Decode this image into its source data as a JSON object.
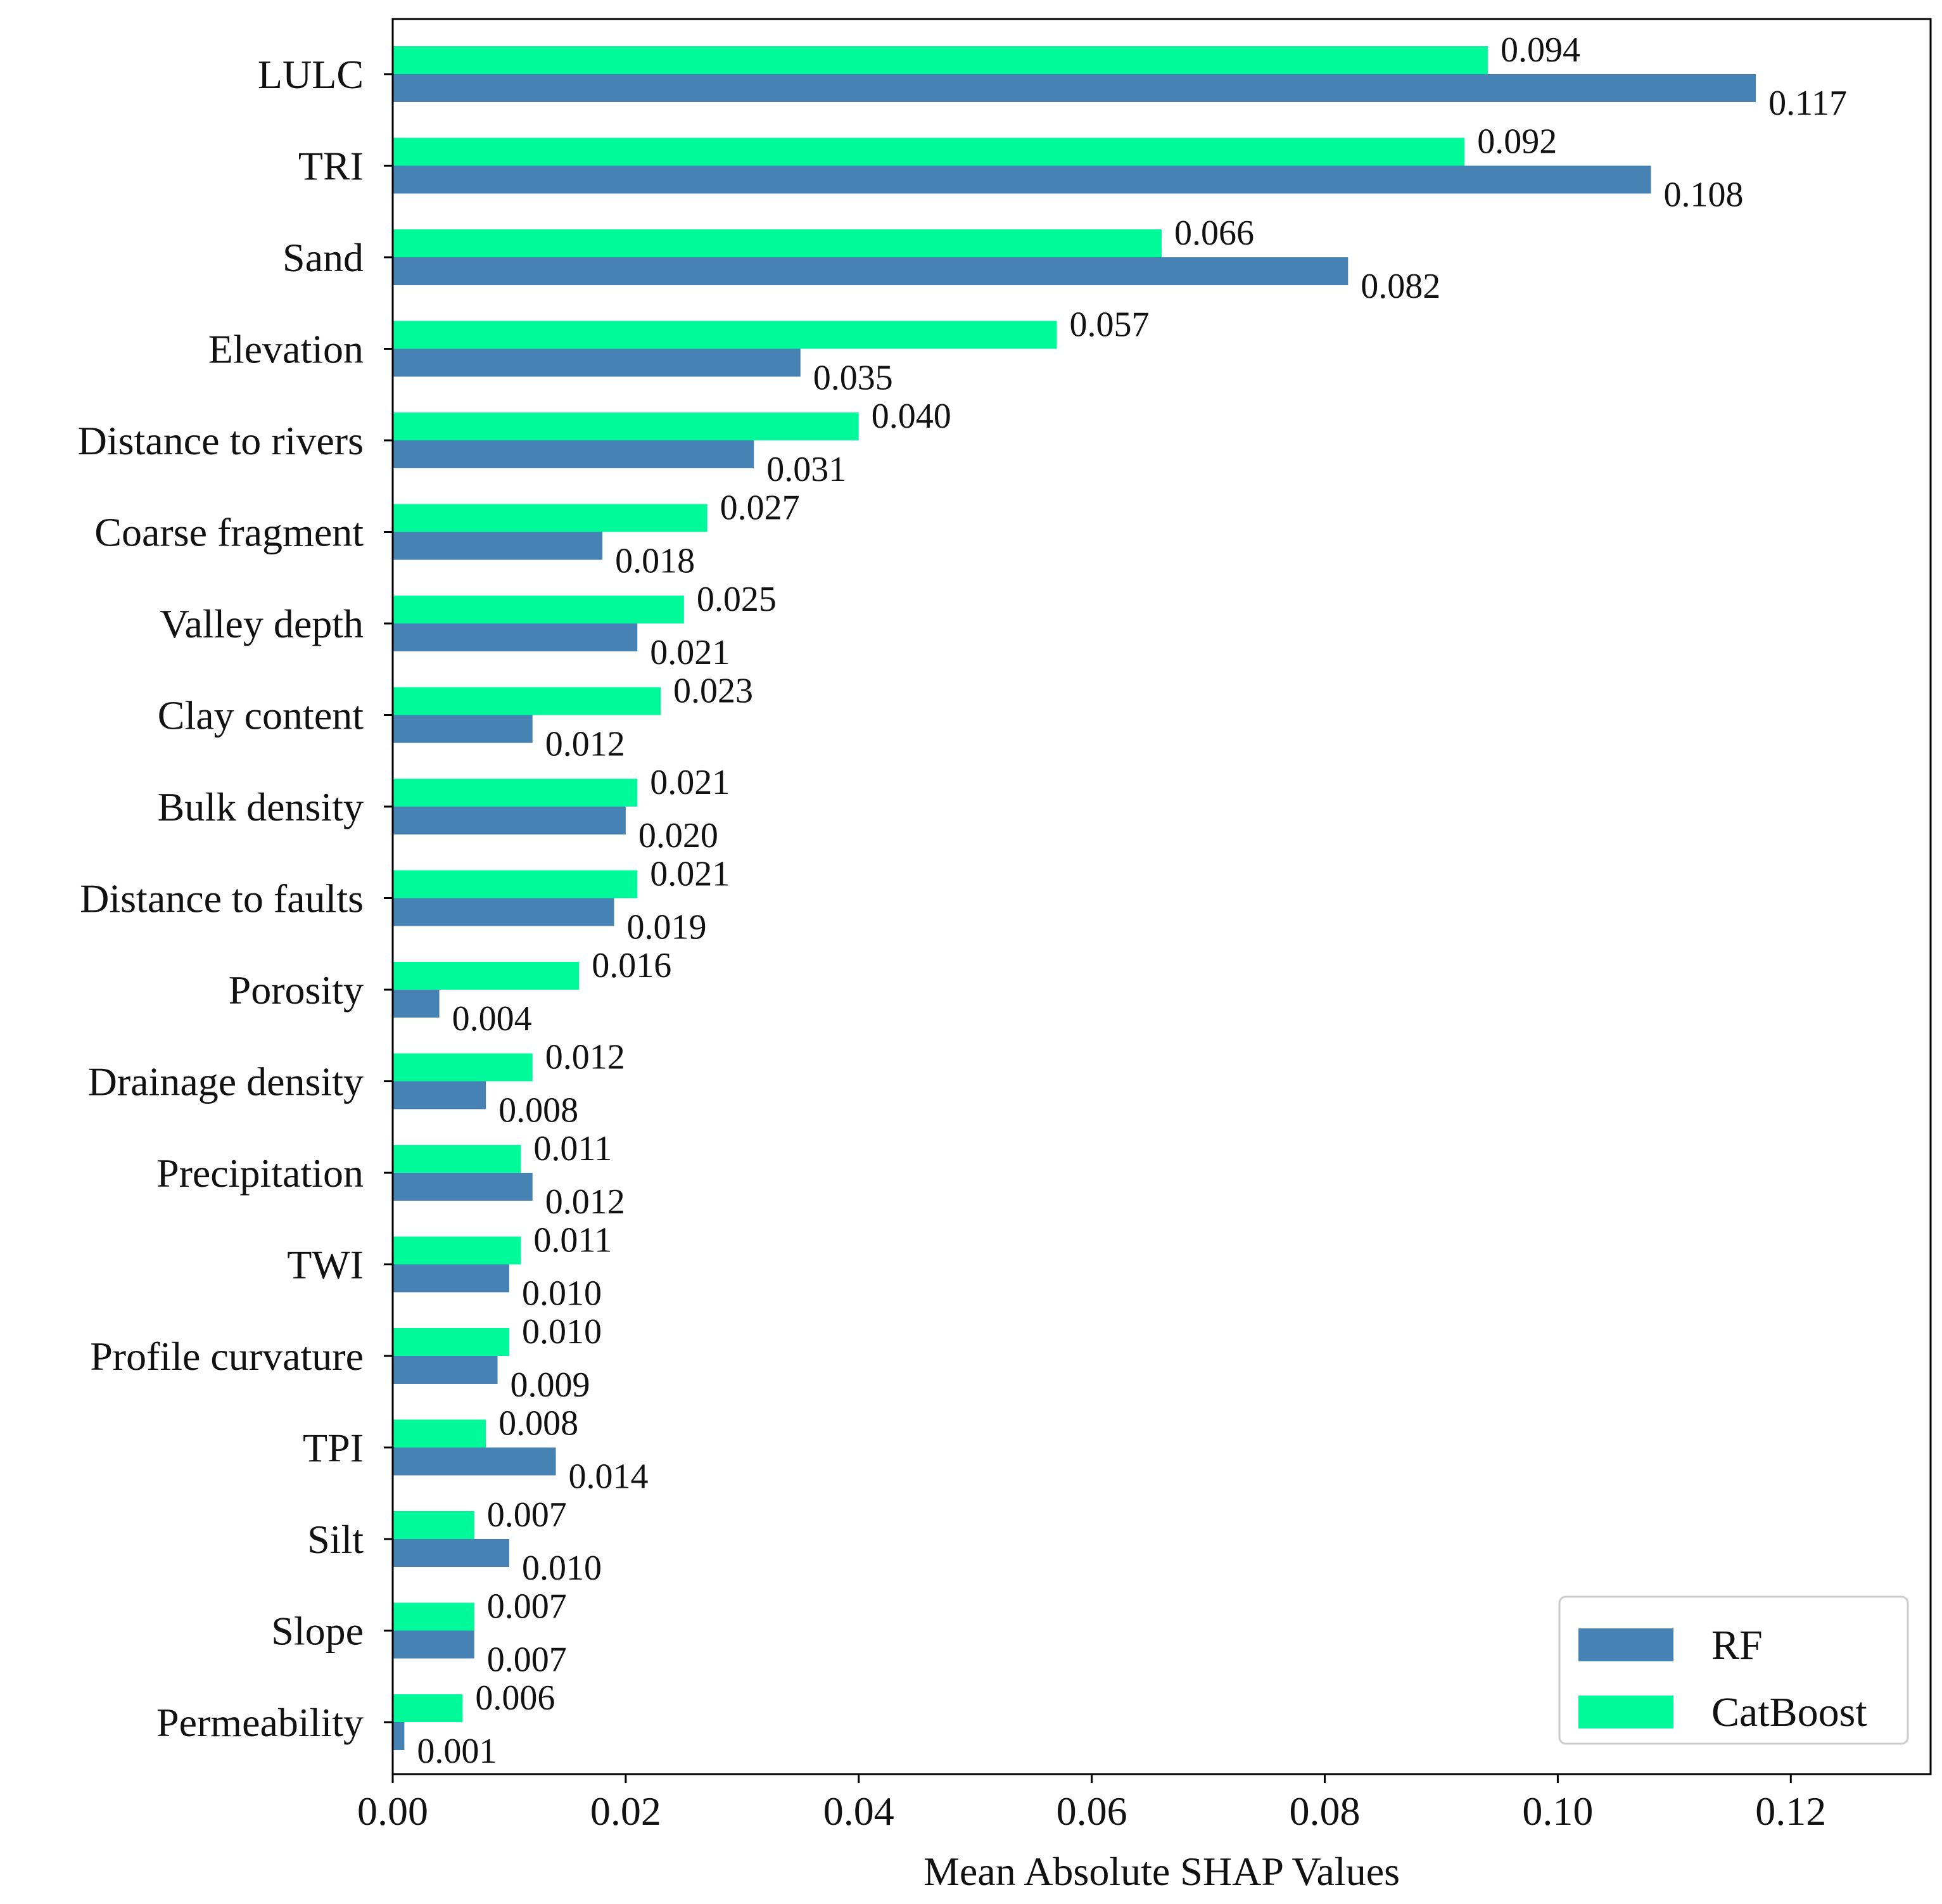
{
  "chart_data": {
    "type": "bar",
    "orientation": "horizontal",
    "title": "",
    "xlabel": "Mean Absolute SHAP Values",
    "ylabel": "",
    "xlim": [
      0,
      0.132
    ],
    "xticks": [
      "0.00",
      "0.02",
      "0.04",
      "0.06",
      "0.08",
      "0.10",
      "0.12"
    ],
    "xtick_values": [
      0,
      0.02,
      0.04,
      0.06,
      0.08,
      0.1,
      0.12
    ],
    "grid": false,
    "legend_position": "bottom-right",
    "categories": [
      "LULC",
      "TRI",
      "Sand",
      "Elevation",
      "Distance to rivers",
      "Coarse fragment",
      "Valley depth",
      "Clay content",
      "Bulk density",
      "Distance to faults",
      "Porosity",
      "Drainage density",
      "Precipitation",
      "TWI",
      "Profile curvature",
      "TPI",
      "Silt",
      "Slope",
      "Permeability"
    ],
    "series": [
      {
        "name": "RF",
        "color": "#4682B4",
        "values": [
          0.117,
          0.108,
          0.082,
          0.035,
          0.031,
          0.018,
          0.021,
          0.012,
          0.02,
          0.019,
          0.004,
          0.008,
          0.012,
          0.01,
          0.009,
          0.014,
          0.01,
          0.007,
          0.001
        ],
        "labels": [
          "0.117",
          "0.108",
          "0.082",
          "0.035",
          "0.031",
          "0.018",
          "0.021",
          "0.012",
          "0.020",
          "0.019",
          "0.004",
          "0.008",
          "0.012",
          "0.010",
          "0.009",
          "0.014",
          "0.010",
          "0.007",
          "0.001"
        ]
      },
      {
        "name": "CatBoost",
        "color": "#00FA9A",
        "values": [
          0.094,
          0.092,
          0.066,
          0.057,
          0.04,
          0.027,
          0.025,
          0.023,
          0.021,
          0.021,
          0.016,
          0.012,
          0.011,
          0.011,
          0.01,
          0.008,
          0.007,
          0.007,
          0.006
        ],
        "labels": [
          "0.094",
          "0.092",
          "0.066",
          "0.057",
          "0.040",
          "0.027",
          "0.025",
          "0.023",
          "0.021",
          "0.021",
          "0.016",
          "0.012",
          "0.011",
          "0.011",
          "0.010",
          "0.008",
          "0.007",
          "0.007",
          "0.006"
        ]
      }
    ]
  }
}
